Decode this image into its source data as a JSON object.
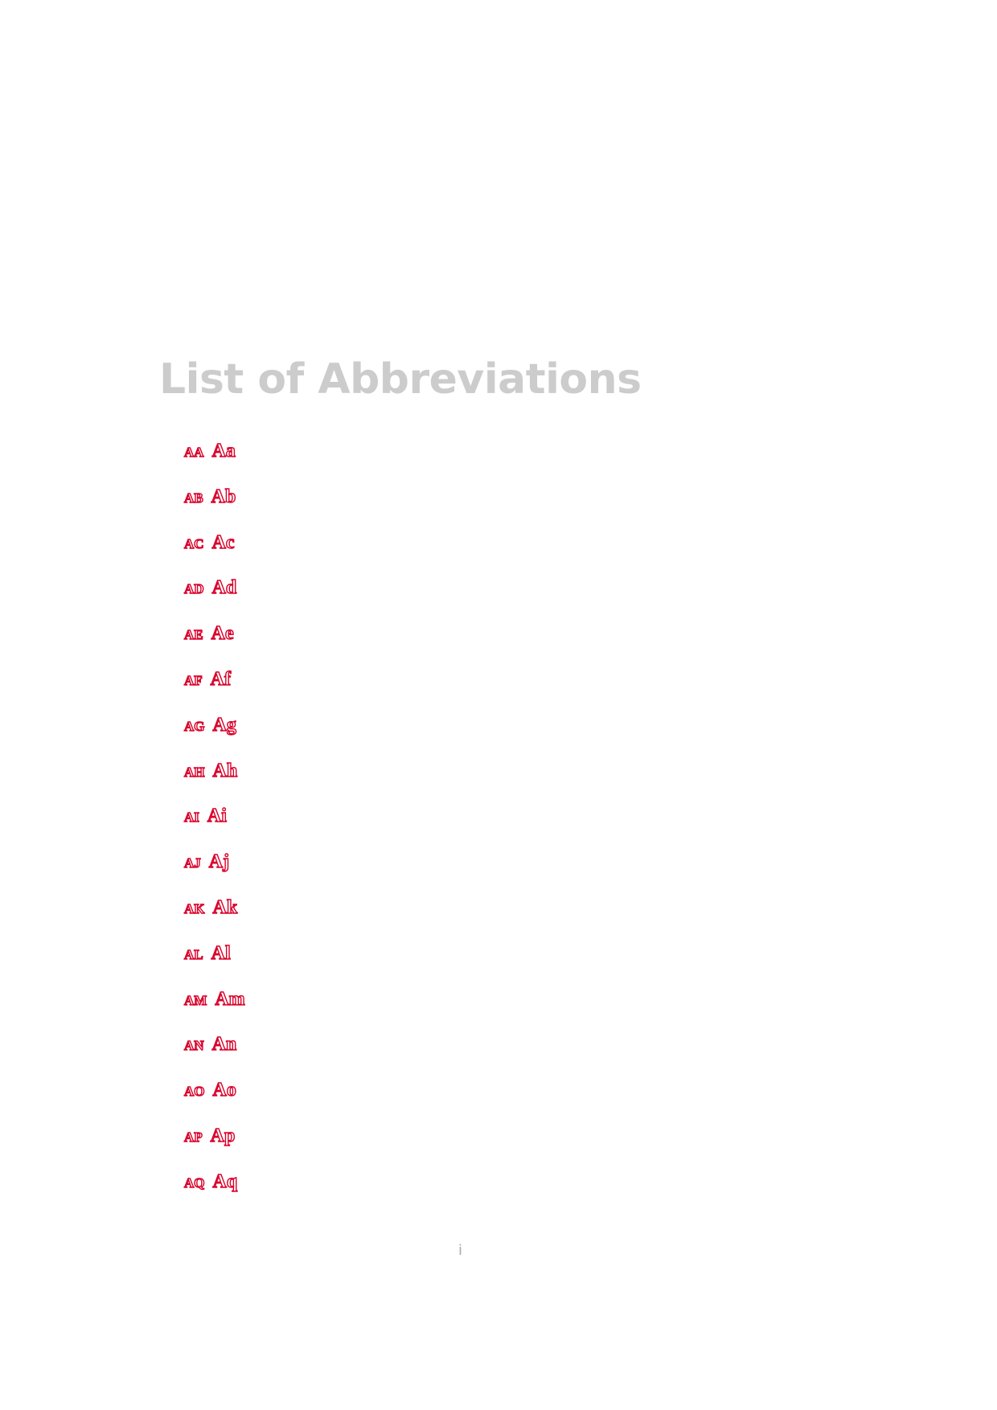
{
  "page": {
    "title": "List of Abbreviations",
    "page_number": "i"
  },
  "abbreviations": [
    {
      "key": "AA",
      "desc": "Aa"
    },
    {
      "key": "AB",
      "desc": "Ab"
    },
    {
      "key": "AC",
      "desc": "Ac"
    },
    {
      "key": "AD",
      "desc": "Ad"
    },
    {
      "key": "AE",
      "desc": "Ae"
    },
    {
      "key": "AF",
      "desc": "Af"
    },
    {
      "key": "AG",
      "desc": "Ag"
    },
    {
      "key": "AH",
      "desc": "Ah"
    },
    {
      "key": "AI",
      "desc": "Ai"
    },
    {
      "key": "AJ",
      "desc": "Aj"
    },
    {
      "key": "AK",
      "desc": "Ak"
    },
    {
      "key": "AL",
      "desc": "Al"
    },
    {
      "key": "AM",
      "desc": "Am"
    },
    {
      "key": "AN",
      "desc": "An"
    },
    {
      "key": "AO",
      "desc": "Ao"
    },
    {
      "key": "AP",
      "desc": "Ap"
    },
    {
      "key": "AQ",
      "desc": "Aq"
    }
  ],
  "colors": {
    "title": "#cccccc",
    "link_outline": "#d9002a",
    "page_number": "#aaaaaa"
  }
}
